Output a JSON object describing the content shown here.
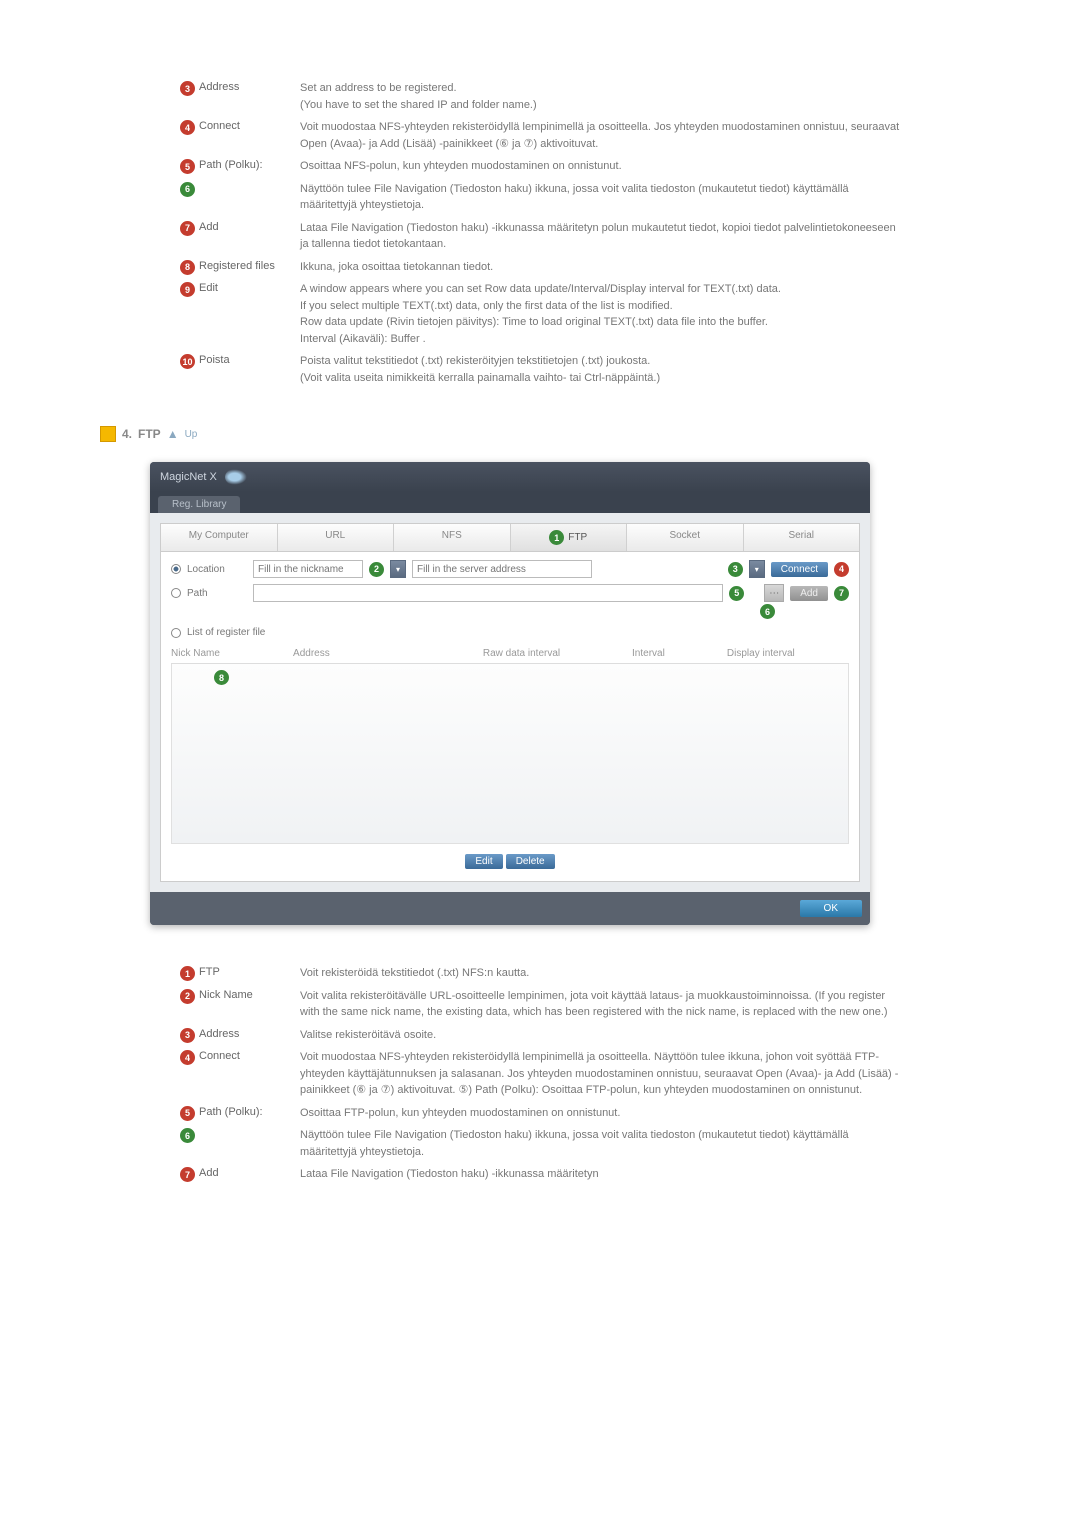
{
  "colors": {
    "badge_red": "#c43c2e",
    "badge_green": "#3a8a3a",
    "text_body": "#777777",
    "link_blue": "#8aa8c0"
  },
  "top_definitions": [
    {
      "num": "3",
      "badge": "red",
      "label": "Address",
      "desc": "Set an address to be registered.\n(You have to set the shared IP and folder name.)"
    },
    {
      "num": "4",
      "badge": "red",
      "label": "Connect",
      "desc": "Voit muodostaa NFS-yhteyden rekisteröidyllä lempinimellä ja osoitteella. Jos yhteyden muodostaminen onnistuu, seuraavat Open (Avaa)- ja Add (Lisää) -painikkeet (⑥ ja ⑦) aktivoituvat."
    },
    {
      "num": "5",
      "badge": "red",
      "label": "Path (Polku):",
      "desc": "Osoittaa NFS-polun, kun yhteyden muodostaminen on onnistunut."
    },
    {
      "num": "6",
      "badge": "green",
      "label": "",
      "desc": "Näyttöön tulee File Navigation (Tiedoston haku) ikkuna, jossa voit valita tiedoston (mukautetut tiedot) käyttämällä määritettyjä yhteystietoja."
    },
    {
      "num": "7",
      "badge": "red",
      "label": "Add",
      "desc": "Lataa File Navigation (Tiedoston haku) -ikkunassa määritetyn polun mukautetut tiedot, kopioi tiedot palvelintietokoneeseen ja tallenna tiedot tietokantaan."
    },
    {
      "num": "8",
      "badge": "red",
      "label": "Registered files",
      "desc": "Ikkuna, joka osoittaa tietokannan tiedot."
    },
    {
      "num": "9",
      "badge": "red",
      "label": "Edit",
      "desc": "A window appears where you can set Row data update/Interval/Display interval for TEXT(.txt) data.\nIf you select multiple TEXT(.txt) data, only the first data of the list is modified.\nRow data update (Rivin tietojen päivitys): Time to load original TEXT(.txt) data file into the buffer.\nInterval (Aikaväli): Buffer ."
    },
    {
      "num": "10",
      "badge": "red",
      "label": "Poista",
      "desc": "Poista valitut tekstitiedot (.txt) rekisteröityjen tekstitietojen (.txt) joukosta.\n(Voit valita useita nimikkeitä kerralla painamalla vaihto- tai Ctrl-näppäintä.)"
    }
  ],
  "section4": {
    "number": "4.",
    "title": "FTP",
    "up": "Up"
  },
  "app": {
    "title": "MagicNet X",
    "tab": "Reg. Library",
    "protocols": [
      "My Computer",
      "URL",
      "NFS",
      "FTP",
      "Socket",
      "Serial"
    ],
    "active_protocol_index": 3,
    "location_label": "Location",
    "path_label": "Path",
    "list_label": "List of register file",
    "nickname_placeholder": "Fill in the nickname",
    "address_placeholder": "Fill in the server address",
    "connect_btn": "Connect",
    "add_btn": "Add",
    "list_cols": [
      "Nick Name",
      "Address",
      "Raw data interval",
      "Interval",
      "Display interval"
    ],
    "edit_btn": "Edit",
    "delete_btn": "Delete",
    "ok_btn": "OK",
    "overlay_badges": {
      "b1": "1",
      "b2": "2",
      "b3": "3",
      "b4": "4",
      "b5": "5",
      "b6": "6",
      "b7": "7",
      "b8": "8"
    }
  },
  "bottom_definitions": [
    {
      "num": "1",
      "badge": "red",
      "label": "FTP",
      "desc": "Voit rekisteröidä tekstitiedot (.txt) NFS:n kautta."
    },
    {
      "num": "2",
      "badge": "red",
      "label": "Nick Name",
      "desc": "Voit valita rekisteröitävälle URL-osoitteelle lempinimen, jota voit käyttää lataus- ja muokkaustoiminnoissa. (If you register with the same nick name, the existing data, which has been registered with the nick name, is replaced with the new one.)"
    },
    {
      "num": "3",
      "badge": "red",
      "label": "Address",
      "desc": "Valitse rekisteröitävä osoite."
    },
    {
      "num": "4",
      "badge": "red",
      "label": "Connect",
      "desc": "Voit muodostaa NFS-yhteyden rekisteröidyllä lempinimellä ja osoitteella. Näyttöön tulee ikkuna, johon voit syöttää FTP-yhteyden käyttäjätunnuksen ja salasanan. Jos yhteyden muodostaminen onnistuu, seuraavat Open (Avaa)- ja Add (Lisää) -painikkeet (⑥ ja ⑦) aktivoituvat. ⑤) Path (Polku): Osoittaa FTP-polun, kun yhteyden muodostaminen on onnistunut."
    },
    {
      "num": "5",
      "badge": "red",
      "label": "Path (Polku):",
      "desc": "Osoittaa FTP-polun, kun yhteyden muodostaminen on onnistunut."
    },
    {
      "num": "6",
      "badge": "green",
      "label": "",
      "desc": "Näyttöön tulee File Navigation (Tiedoston haku) ikkuna, jossa voit valita tiedoston (mukautetut tiedot) käyttämällä määritettyjä yhteystietoja."
    },
    {
      "num": "7",
      "badge": "red",
      "label": "Add",
      "desc": "Lataa File Navigation (Tiedoston haku) -ikkunassa määritetyn"
    }
  ]
}
